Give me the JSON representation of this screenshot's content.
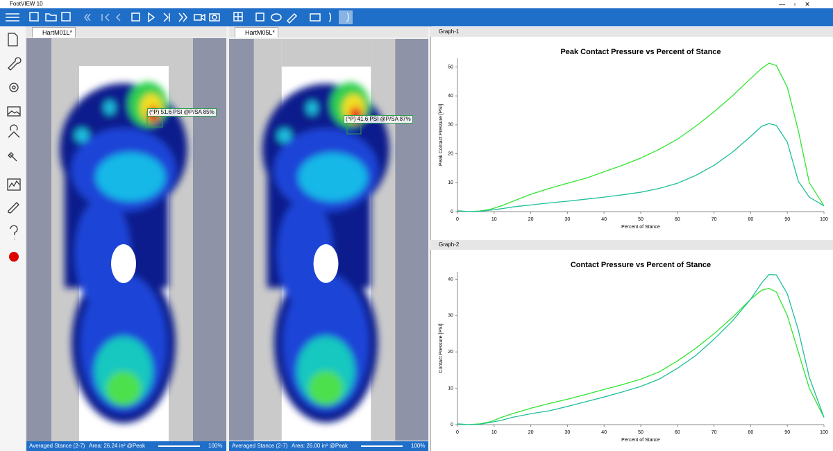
{
  "app_title": "FootVIEW 10",
  "panels": [
    {
      "tab": "HartM01L*",
      "annotation": "(^P) 51.6 PSI @P/SA 85%",
      "status": "Averaged Stance (2-7)",
      "area": "Area: 26.24 in² @Peak",
      "zoom": "100%"
    },
    {
      "tab": "HartM05L*",
      "annotation": "(^P) 41.6 PSI @P/SA 87%",
      "status": "Averaged Stance (2-7)",
      "area": "Area: 26.00 in² @Peak",
      "zoom": "100%"
    }
  ],
  "graph_tabs": [
    "Graph-1",
    "Graph-2"
  ],
  "chart_data": [
    {
      "type": "line",
      "title": "Peak Contact Pressure vs Percent of Stance",
      "x_label": "Percent of Stance",
      "y_label": "Peak Contact Pressure [PSI]",
      "x": [
        0,
        3,
        6,
        9,
        12,
        15,
        20,
        25,
        30,
        35,
        40,
        45,
        50,
        55,
        60,
        65,
        70,
        75,
        80,
        83,
        85,
        87,
        90,
        93,
        96,
        100
      ],
      "series": [
        {
          "color": "#2ee62e",
          "values": [
            0.3,
            0,
            0.2,
            0.8,
            2,
            3.5,
            6,
            8,
            9.8,
            11.5,
            13.8,
            16,
            18.5,
            21.5,
            25,
            29.5,
            34.5,
            40,
            46,
            49.5,
            51.3,
            50.5,
            43,
            28,
            10,
            2
          ]
        },
        {
          "color": "#1fbf9a",
          "values": [
            0.3,
            0,
            0.1,
            0.5,
            1,
            1.6,
            2.3,
            3,
            3.6,
            4.3,
            5,
            5.8,
            6.7,
            8,
            9.8,
            12.5,
            16,
            20.5,
            26,
            29.5,
            30.4,
            29.8,
            24,
            10.5,
            5,
            2
          ]
        }
      ],
      "xlim": [
        0,
        100
      ],
      "xticks": [
        0,
        10,
        20,
        30,
        40,
        50,
        60,
        70,
        80,
        90,
        100
      ],
      "ylim": [
        0,
        53
      ],
      "yticks": [
        0,
        10,
        20,
        30,
        40,
        50
      ],
      "grid": false
    },
    {
      "type": "line",
      "title": "Contact Pressure vs Percent of Stance",
      "x_label": "Percent of Stance",
      "y_label": "Contact Pressure [PSI]",
      "x": [
        0,
        3,
        6,
        9,
        12,
        15,
        20,
        25,
        30,
        35,
        40,
        45,
        50,
        55,
        60,
        65,
        70,
        75,
        80,
        83,
        85,
        87,
        90,
        93,
        96,
        100
      ],
      "series": [
        {
          "color": "#2ee62e",
          "values": [
            0.2,
            0,
            0.2,
            0.8,
            2,
            3,
            4.5,
            5.8,
            7,
            8.3,
            9.7,
            11,
            12.5,
            14.5,
            17.5,
            21,
            25,
            29.5,
            34.5,
            37,
            37.5,
            36.5,
            30,
            20,
            10,
            2
          ]
        },
        {
          "color": "#1fbf9a",
          "values": [
            0.2,
            0,
            0.1,
            0.6,
            1.2,
            2,
            3,
            3.8,
            5,
            6.3,
            7.6,
            9,
            10.5,
            12.5,
            15.5,
            19,
            23.5,
            28.5,
            34.5,
            39,
            41.3,
            41.2,
            36,
            26,
            13,
            2
          ]
        }
      ],
      "xlim": [
        0,
        100
      ],
      "xticks": [
        0,
        10,
        20,
        30,
        40,
        50,
        60,
        70,
        80,
        90,
        100
      ],
      "ylim": [
        0,
        42
      ],
      "yticks": [
        0,
        10,
        20,
        30,
        40
      ],
      "grid": false
    }
  ]
}
